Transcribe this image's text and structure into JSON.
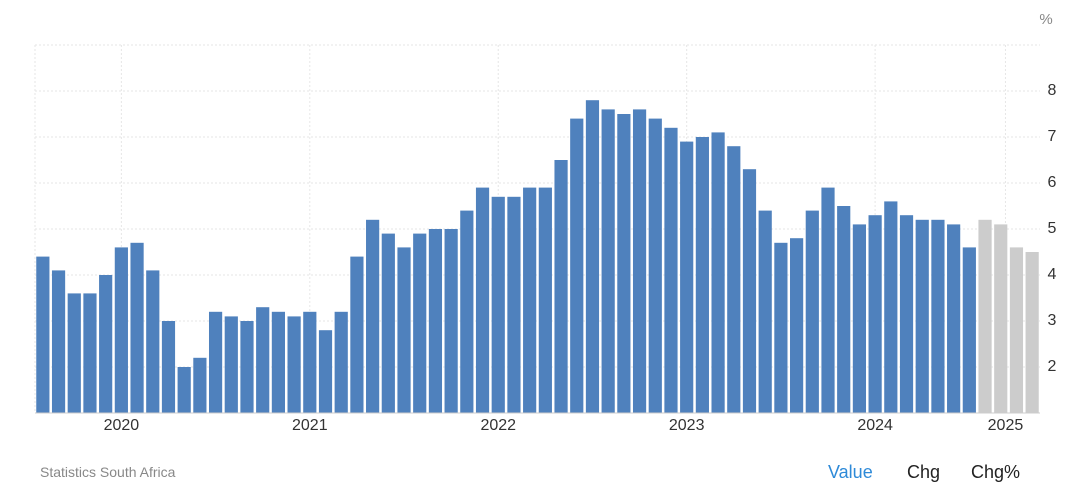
{
  "chart_data": {
    "type": "bar",
    "unit": "%",
    "source": "Statistics South Africa",
    "buttons": [
      "Value",
      "Chg",
      "Chg%"
    ],
    "categories": [
      null,
      null,
      null,
      null,
      null,
      null,
      null,
      null,
      null,
      null,
      null,
      null,
      null,
      null,
      null,
      null,
      null,
      null,
      null,
      null,
      null,
      null,
      null,
      null,
      null,
      null,
      null,
      null,
      null,
      null,
      null,
      null,
      null,
      null,
      null,
      null,
      null,
      null,
      null,
      null,
      null,
      null,
      null,
      null,
      null,
      null,
      null,
      null,
      null,
      null,
      null,
      null,
      null,
      null,
      null,
      null,
      null,
      null,
      null,
      null,
      null,
      null,
      null,
      null
    ],
    "series": [
      {
        "color": "#4f81bd",
        "values": [
          4.4,
          4.1,
          3.6,
          3.6,
          4.0,
          4.6,
          4.7,
          4.1,
          3.0,
          2.0,
          2.2,
          3.2,
          3.1,
          3.0,
          3.3,
          3.2,
          3.1,
          3.2,
          2.8,
          3.2,
          4.4,
          5.2,
          4.9,
          4.6,
          4.9,
          5.0,
          5.0,
          5.4,
          5.9,
          5.7,
          5.7,
          5.9,
          5.9,
          6.5,
          7.4,
          7.8,
          7.6,
          7.5,
          7.6,
          7.4,
          7.2,
          6.9,
          7.0,
          7.1,
          6.8,
          6.3,
          5.4,
          4.7,
          4.8,
          5.4,
          5.9,
          5.5,
          5.1,
          5.3,
          5.6,
          5.3,
          5.2,
          5.2,
          5.1,
          4.6,
          null,
          null,
          null,
          null
        ]
      },
      {
        "color": "#cccccc",
        "values": [
          null,
          null,
          null,
          null,
          null,
          null,
          null,
          null,
          null,
          null,
          null,
          null,
          null,
          null,
          null,
          null,
          null,
          null,
          null,
          null,
          null,
          null,
          null,
          null,
          null,
          null,
          null,
          null,
          null,
          null,
          null,
          null,
          null,
          null,
          null,
          null,
          null,
          null,
          null,
          null,
          null,
          null,
          null,
          null,
          null,
          null,
          null,
          null,
          null,
          null,
          null,
          null,
          null,
          null,
          null,
          null,
          null,
          null,
          null,
          null,
          5.2,
          5.1,
          4.6,
          4.5
        ]
      }
    ],
    "xticks": [
      {
        "value": 5,
        "label": "2020"
      },
      {
        "value": 17,
        "label": "2021"
      },
      {
        "value": 29,
        "label": "2022"
      },
      {
        "value": 41,
        "label": "2023"
      },
      {
        "value": 53,
        "label": "2024"
      },
      {
        "value": 61.3,
        "label": "2025"
      }
    ],
    "ylim": [
      1,
      9
    ],
    "yticks": [
      2,
      3,
      4,
      5,
      6,
      7,
      8
    ],
    "grid": true
  }
}
